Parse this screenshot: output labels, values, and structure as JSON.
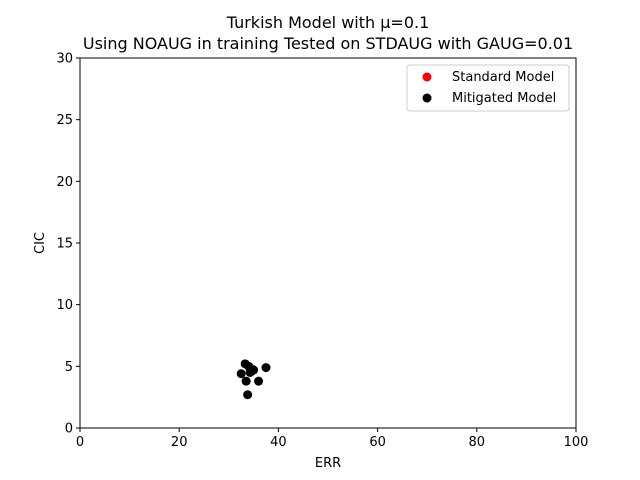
{
  "chart_data": {
    "type": "scatter",
    "title_line1": "Turkish Model with μ=0.1",
    "title_line2": "Using NOAUG in training Tested on STDAUG with GAUG=0.01",
    "xlabel": "ERR",
    "ylabel": "CIC",
    "xlim": [
      0,
      100
    ],
    "ylim": [
      0,
      30
    ],
    "xticks": [
      0,
      20,
      40,
      60,
      80,
      100
    ],
    "yticks": [
      0,
      5,
      10,
      15,
      20,
      25,
      30
    ],
    "grid": false,
    "legend_position": "top-right",
    "series": [
      {
        "name": "Standard Model",
        "color": "#ff0000",
        "points": []
      },
      {
        "name": "Mitigated Model",
        "color": "#000000",
        "points": [
          {
            "x": 33.3,
            "y": 5.2,
            "xerr": 0.6,
            "yerr": 0.2
          },
          {
            "x": 34.0,
            "y": 5.0,
            "xerr": 0.8,
            "yerr": 0.3
          },
          {
            "x": 32.5,
            "y": 4.4,
            "xerr": 0.7,
            "yerr": 0.2
          },
          {
            "x": 33.5,
            "y": 3.8,
            "xerr": 0.9,
            "yerr": 0.3
          },
          {
            "x": 35.0,
            "y": 4.7,
            "xerr": 0.8,
            "yerr": 0.4
          },
          {
            "x": 36.0,
            "y": 3.8,
            "xerr": 0.4,
            "yerr": 0.2
          },
          {
            "x": 37.5,
            "y": 4.9,
            "xerr": 0.6,
            "yerr": 0.2
          },
          {
            "x": 33.8,
            "y": 2.7,
            "xerr": 0.3,
            "yerr": 0.1
          },
          {
            "x": 34.3,
            "y": 4.5,
            "xerr": 0.5,
            "yerr": 0.3
          }
        ]
      }
    ]
  }
}
